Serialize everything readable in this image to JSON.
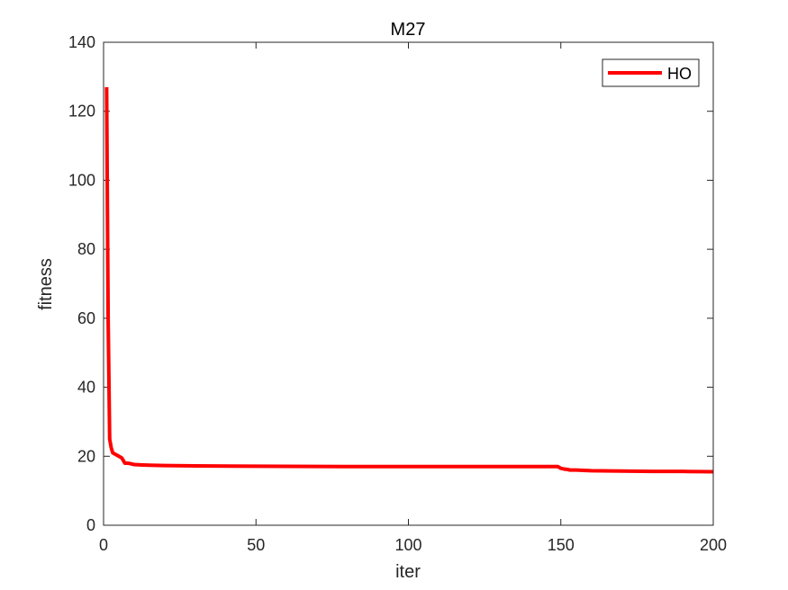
{
  "chart_data": {
    "type": "line",
    "title": "M27",
    "xlabel": "iter",
    "ylabel": "fitness",
    "xlim": [
      0,
      200
    ],
    "ylim": [
      0,
      140
    ],
    "xticks": [
      0,
      50,
      100,
      150,
      200
    ],
    "yticks": [
      0,
      20,
      40,
      60,
      80,
      100,
      120,
      140
    ],
    "grid": false,
    "legend_position": "top-right",
    "series": [
      {
        "name": "HO",
        "color": "#ff0000",
        "x": [
          1,
          1.5,
          2,
          2.5,
          3,
          4,
          5,
          6,
          7,
          8,
          9,
          10,
          12,
          15,
          20,
          30,
          50,
          80,
          100,
          120,
          148,
          149,
          150,
          151,
          152,
          153,
          155,
          160,
          170,
          180,
          190,
          200
        ],
        "y": [
          127,
          60,
          25,
          22.5,
          21,
          20.5,
          20,
          19.5,
          18,
          18,
          17.8,
          17.6,
          17.5,
          17.4,
          17.3,
          17.2,
          17.1,
          17.0,
          17.0,
          17.0,
          17.0,
          17.0,
          16.5,
          16.3,
          16.2,
          16.0,
          16.0,
          15.8,
          15.7,
          15.6,
          15.6,
          15.5
        ]
      }
    ]
  }
}
